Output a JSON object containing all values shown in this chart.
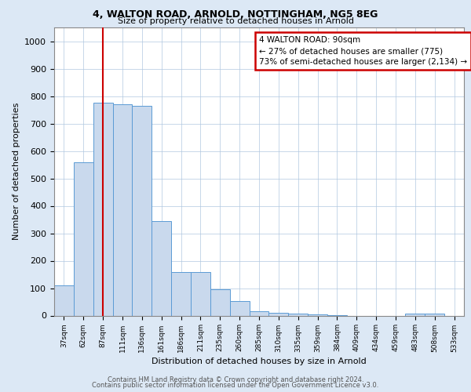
{
  "title1": "4, WALTON ROAD, ARNOLD, NOTTINGHAM, NG5 8EG",
  "title2": "Size of property relative to detached houses in Arnold",
  "xlabel": "Distribution of detached houses by size in Arnold",
  "ylabel": "Number of detached properties",
  "bar_color": "#c9d9ed",
  "bar_edge_color": "#5b9bd5",
  "categories": [
    "37sqm",
    "62sqm",
    "87sqm",
    "111sqm",
    "136sqm",
    "161sqm",
    "186sqm",
    "211sqm",
    "235sqm",
    "260sqm",
    "285sqm",
    "310sqm",
    "335sqm",
    "359sqm",
    "384sqm",
    "409sqm",
    "434sqm",
    "459sqm",
    "483sqm",
    "508sqm",
    "533sqm"
  ],
  "values": [
    110,
    560,
    775,
    770,
    765,
    345,
    160,
    160,
    95,
    52,
    15,
    10,
    7,
    5,
    2,
    0,
    0,
    0,
    8,
    8,
    0
  ],
  "vline_x_index": 2,
  "vline_color": "#cc0000",
  "annotation_text": "4 WALTON ROAD: 90sqm\n← 27% of detached houses are smaller (775)\n73% of semi-detached houses are larger (2,134) →",
  "annotation_box_color": "#ffffff",
  "annotation_box_edge_color": "#cc0000",
  "ylim": [
    0,
    1050
  ],
  "yticks": [
    0,
    100,
    200,
    300,
    400,
    500,
    600,
    700,
    800,
    900,
    1000
  ],
  "footer1": "Contains HM Land Registry data © Crown copyright and database right 2024.",
  "footer2": "Contains public sector information licensed under the Open Government Licence v3.0.",
  "background_color": "#dce8f5",
  "plot_bg_color": "#ffffff"
}
